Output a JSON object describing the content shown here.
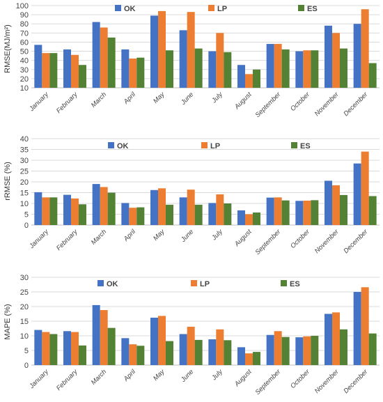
{
  "colors": {
    "OK": "#4472C4",
    "LP": "#ED7D31",
    "ES": "#548235"
  },
  "chart_data": [
    {
      "type": "bar",
      "ylabel": "RMSE(MJ/m²)",
      "ylim": [
        10,
        100
      ],
      "yticks": [
        10,
        20,
        30,
        40,
        50,
        60,
        70,
        80,
        90,
        100
      ],
      "categories": [
        "January",
        "February",
        "March",
        "April",
        "May",
        "June",
        "July",
        "August",
        "September",
        "October",
        "November",
        "December"
      ],
      "series": [
        {
          "name": "OK",
          "values": [
            57,
            52,
            82,
            52,
            89,
            73,
            50,
            35,
            58,
            50,
            78,
            80
          ]
        },
        {
          "name": "LP",
          "values": [
            48,
            46,
            76,
            42,
            94,
            93,
            70,
            25,
            58,
            51,
            70,
            96
          ]
        },
        {
          "name": "ES",
          "values": [
            48,
            35,
            65,
            43,
            51,
            53,
            49,
            30,
            52,
            51,
            53,
            37
          ]
        }
      ],
      "legend": "top"
    },
    {
      "type": "bar",
      "ylabel": "rRMSE (%)",
      "ylim": [
        0,
        40
      ],
      "yticks": [
        0,
        5,
        10,
        15,
        20,
        25,
        30,
        35,
        40
      ],
      "categories": [
        "January",
        "February",
        "March",
        "April",
        "May",
        "June",
        "July",
        "August",
        "September",
        "October",
        "November",
        "December"
      ],
      "series": [
        {
          "name": "OK",
          "values": [
            15.2,
            14.0,
            19.0,
            10.2,
            16.2,
            12.8,
            10.2,
            6.8,
            12.7,
            11.2,
            20.5,
            28.5
          ]
        },
        {
          "name": "LP",
          "values": [
            12.8,
            12.3,
            17.6,
            8.0,
            17.0,
            16.4,
            14.2,
            5.0,
            12.8,
            11.3,
            18.4,
            34.0
          ]
        },
        {
          "name": "ES",
          "values": [
            12.8,
            9.6,
            15.0,
            8.2,
            9.4,
            9.4,
            10.0,
            5.8,
            11.4,
            11.5,
            13.9,
            13.4
          ]
        }
      ],
      "legend": "top"
    },
    {
      "type": "bar",
      "ylabel": "MAPE (%)",
      "ylim": [
        0,
        30
      ],
      "yticks": [
        0,
        5,
        10,
        15,
        20,
        25,
        30
      ],
      "categories": [
        "January",
        "February",
        "March",
        "April",
        "May",
        "June",
        "July",
        "August",
        "September",
        "October",
        "November",
        "December"
      ],
      "series": [
        {
          "name": "OK",
          "values": [
            12.0,
            11.6,
            20.5,
            9.2,
            16.2,
            10.6,
            8.8,
            6.1,
            10.3,
            9.5,
            17.5,
            25.0
          ]
        },
        {
          "name": "LP",
          "values": [
            11.3,
            11.3,
            18.8,
            7.1,
            16.8,
            13.1,
            12.2,
            4.0,
            11.6,
            9.8,
            18.0,
            26.6
          ]
        },
        {
          "name": "ES",
          "values": [
            10.6,
            6.7,
            12.7,
            6.6,
            8.2,
            8.6,
            8.5,
            4.5,
            9.6,
            10.0,
            12.2,
            10.8
          ]
        }
      ],
      "legend": "top"
    }
  ]
}
